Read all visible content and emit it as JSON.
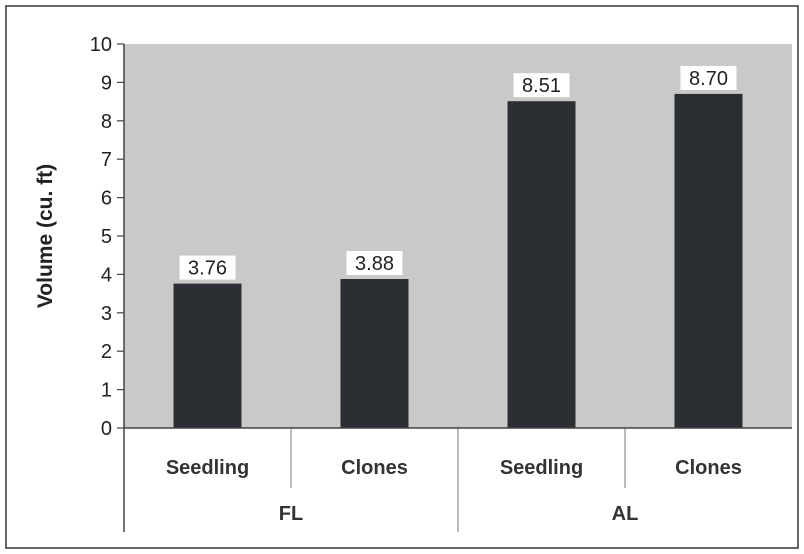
{
  "chart_data": {
    "type": "bar",
    "ylabel": "Volume (cu. ft)",
    "xlabel": "",
    "ylim": [
      0,
      10
    ],
    "yticks": [
      0,
      1,
      2,
      3,
      4,
      5,
      6,
      7,
      8,
      9,
      10
    ],
    "categories": [
      "Seedling",
      "Clones",
      "Seedling",
      "Clones"
    ],
    "groups": [
      {
        "label": "FL",
        "categories": [
          "Seedling",
          "Clones"
        ]
      },
      {
        "label": "AL",
        "categories": [
          "Seedling",
          "Clones"
        ]
      }
    ],
    "values": [
      3.76,
      3.88,
      8.51,
      8.7
    ],
    "data_labels": [
      "3.76",
      "3.88",
      "8.51",
      "8.70"
    ],
    "bar_color": "#2b2f33",
    "plot_background": "#c9c9c9",
    "grid": false,
    "legend": "none"
  }
}
